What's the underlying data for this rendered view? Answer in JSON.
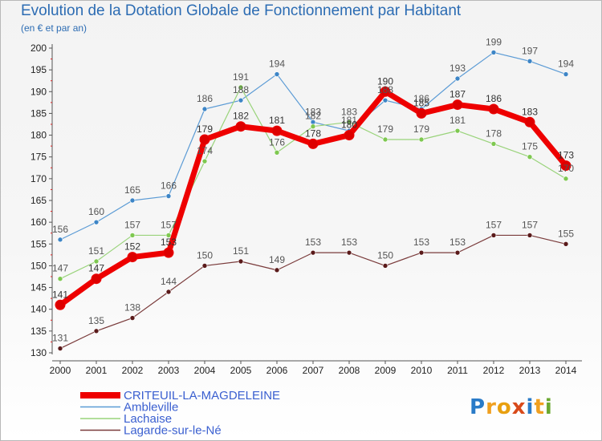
{
  "title": "Evolution de la Dotation Globale de Fonctionnement par Habitant",
  "subtitle": "(en € et par an)",
  "logo": {
    "text": "Proxiti"
  },
  "chart_data": {
    "type": "line",
    "title": "Evolution de la Dotation Globale de Fonctionnement par Habitant",
    "ylabel": "(en € et par an)",
    "xlabel": "",
    "x": [
      "2000",
      "2001",
      "2002",
      "2003",
      "2004",
      "2005",
      "2006",
      "2007",
      "2008",
      "2009",
      "2010",
      "2011",
      "2012",
      "2013",
      "2014"
    ],
    "ylim": [
      130,
      200
    ],
    "yticks": [
      130,
      135,
      140,
      145,
      150,
      155,
      160,
      165,
      170,
      175,
      180,
      185,
      190,
      195,
      200
    ],
    "grid": false,
    "legend_position": "bottom-left",
    "series": [
      {
        "name": "Ambleville",
        "color": "#5b9bd5",
        "markerFill": "#3d85c6",
        "width": 1.2,
        "values": [
          156,
          160,
          165,
          166,
          186,
          188,
          194,
          183,
          181,
          188,
          186,
          193,
          199,
          197,
          194
        ],
        "labels": [
          "156",
          "160",
          "165",
          "166",
          "186",
          "188",
          "194",
          "183",
          "181",
          "188",
          "186",
          "193",
          "199",
          "197",
          "194"
        ]
      },
      {
        "name": "Lachaise",
        "color": "#99d37a",
        "markerFill": "#7ec850",
        "width": 1.2,
        "values": [
          147,
          151,
          157,
          157,
          174,
          191,
          176,
          182,
          183,
          179,
          179,
          181,
          178,
          175,
          170
        ],
        "labels": [
          "147",
          "151",
          "157",
          "157",
          "174",
          "191",
          "176",
          "182",
          "183",
          "179",
          "179",
          "181",
          "178",
          "175",
          "170"
        ]
      },
      {
        "name": "Lagarde-sur-le-Né",
        "color": "#7a3b3b",
        "markerFill": "#5a1a1a",
        "width": 1.2,
        "values": [
          131,
          135,
          138,
          144,
          150,
          151,
          149,
          153,
          153,
          150,
          153,
          153,
          157,
          157,
          155
        ],
        "labels": [
          "131",
          "135",
          "138",
          "144",
          "150",
          "151",
          "149",
          "153",
          "153",
          "150",
          "153",
          "153",
          "157",
          "157",
          "155"
        ]
      },
      {
        "name": "CRITEUIL-LA-MAGDELEINE",
        "color": "#ee0000",
        "markerFill": "#dd0000",
        "width": 7,
        "values": [
          141,
          147,
          152,
          153,
          179,
          182,
          181,
          178,
          180,
          190,
          185,
          187,
          186,
          183,
          173
        ],
        "labels": [
          "141",
          "147",
          "152",
          "153",
          "179",
          "182",
          "181",
          "178",
          "180",
          "190",
          "185",
          "187",
          "186",
          "183",
          "173"
        ]
      }
    ]
  }
}
